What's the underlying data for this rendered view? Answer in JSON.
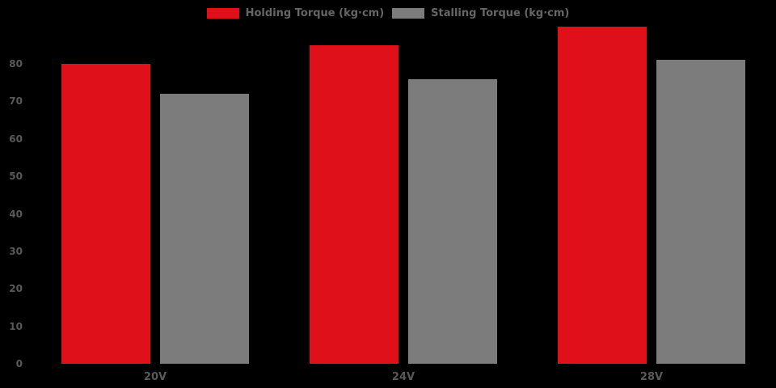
{
  "chart_data": {
    "type": "bar",
    "title": "",
    "xlabel": "",
    "ylabel": "",
    "categories": [
      "20V",
      "24V",
      "28V"
    ],
    "series": [
      {
        "name": "Holding Torque (kg·cm)",
        "color": "#e0101b",
        "values": [
          80,
          85,
          90
        ]
      },
      {
        "name": "Stalling Torque (kg·cm)",
        "color": "#7c7c7c",
        "values": [
          72,
          76,
          81
        ]
      }
    ],
    "ylim": [
      0,
      90
    ],
    "yticks": [
      0,
      10,
      20,
      30,
      40,
      50,
      60,
      70,
      80
    ],
    "grid": false,
    "legend_position": "top-center",
    "background_color": "#000000",
    "axis_text_color": "#595959"
  }
}
